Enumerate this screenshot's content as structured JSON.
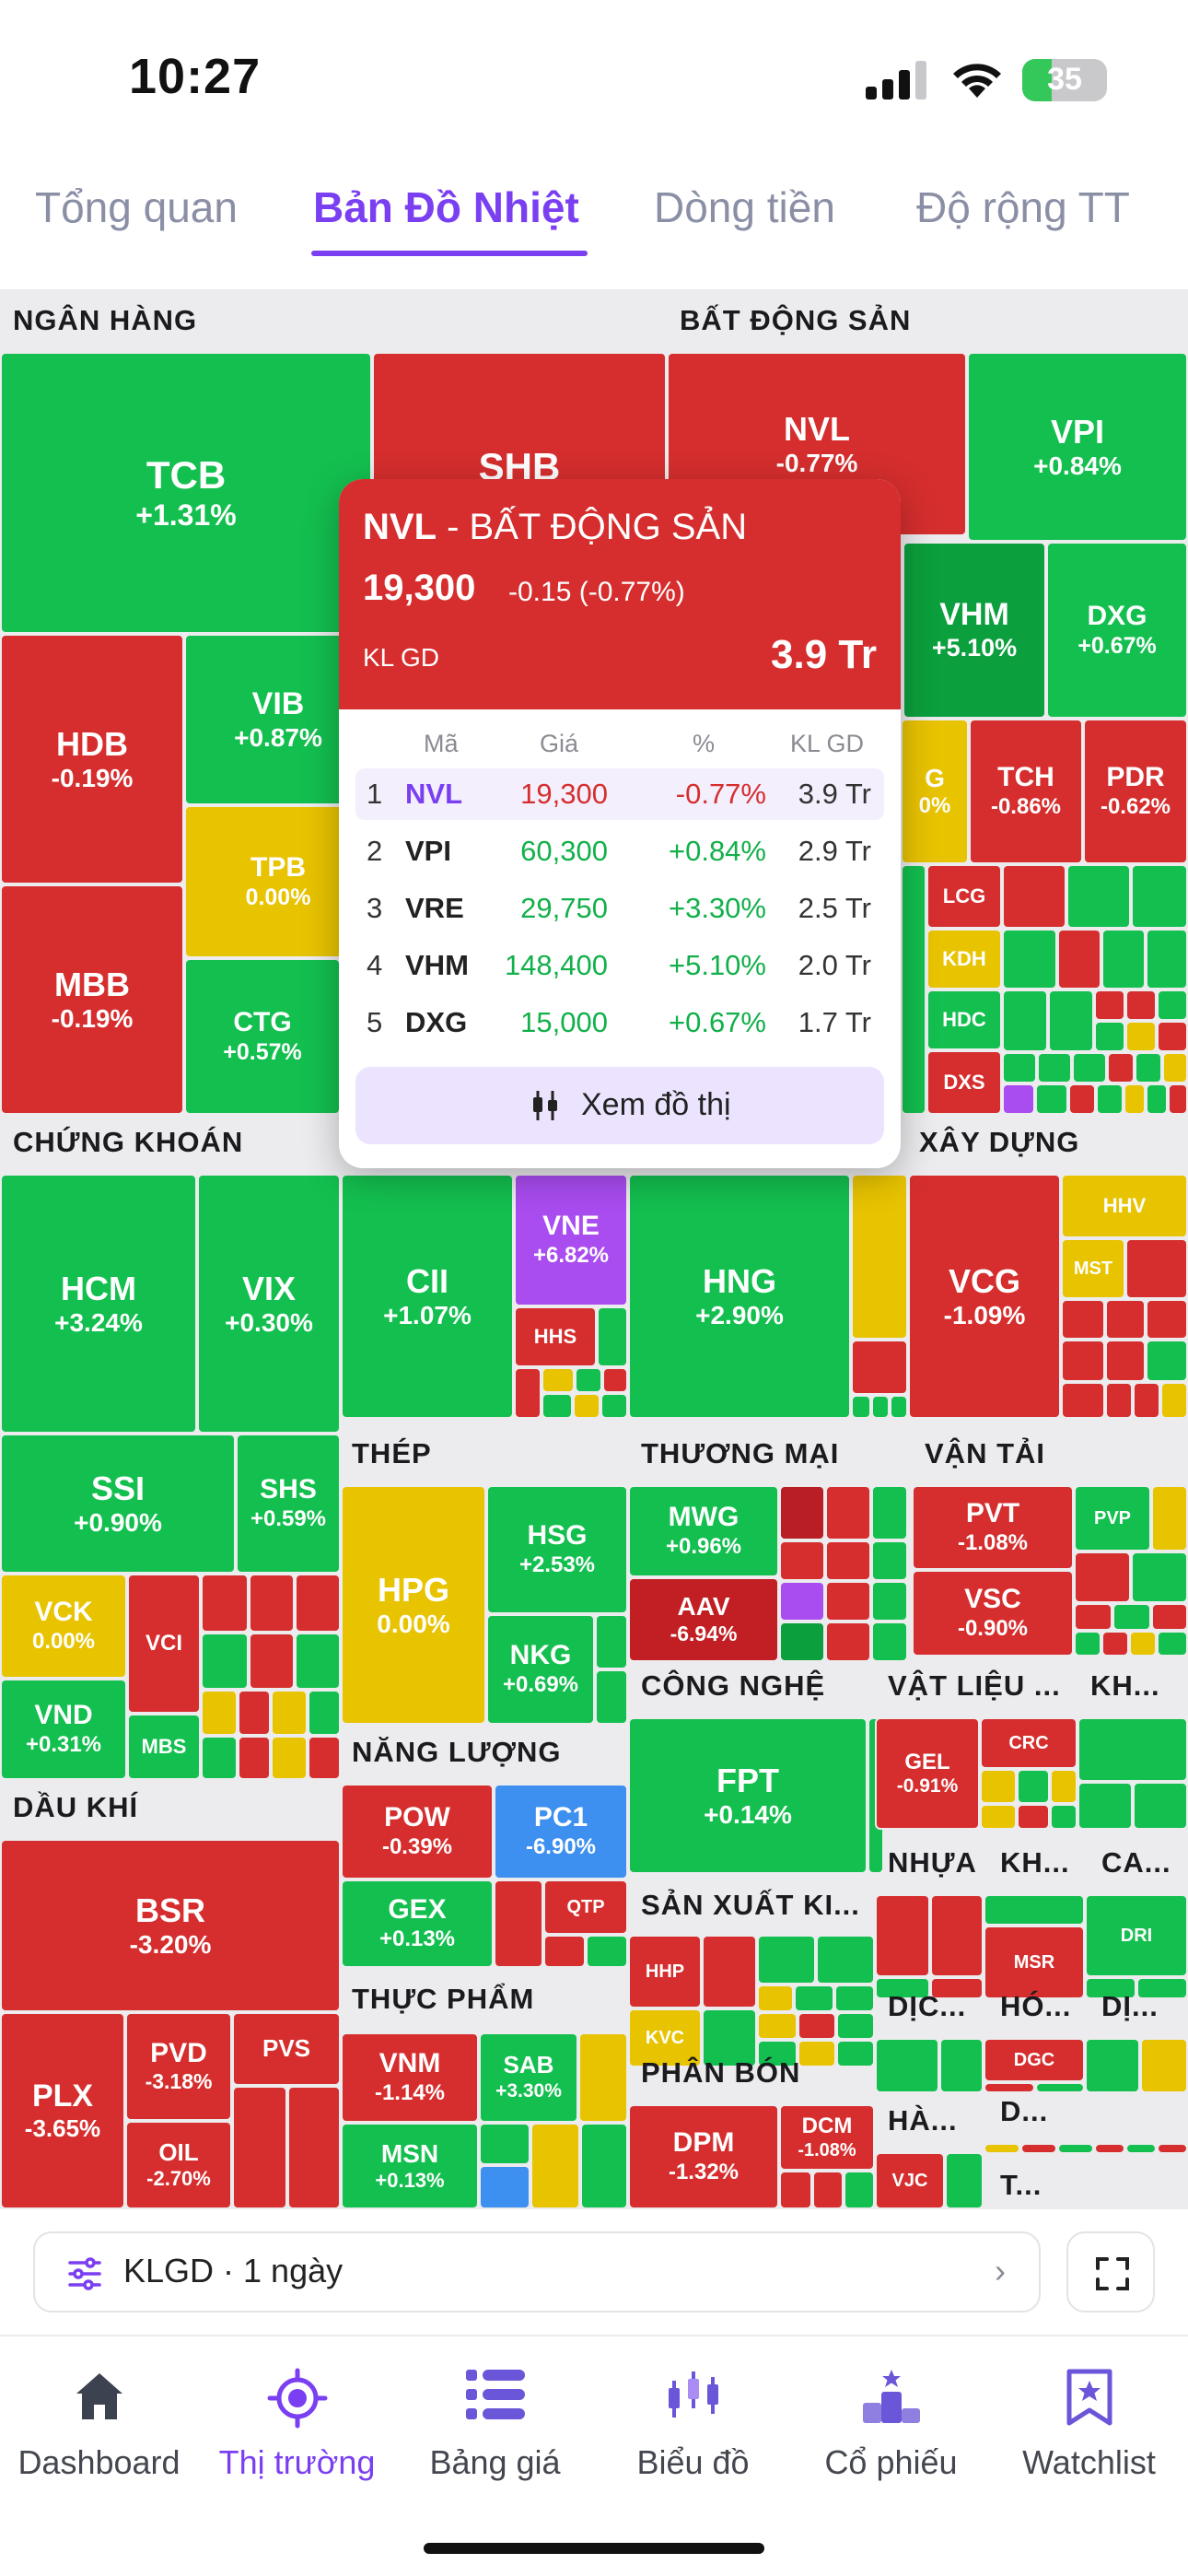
{
  "status_bar": {
    "time": "10:27",
    "battery": "35"
  },
  "tabs": [
    {
      "label": "Tổng quan"
    },
    {
      "label": "Bản Đồ Nhiệt"
    },
    {
      "label": "Dòng tiền"
    },
    {
      "label": "Độ rộng TT"
    }
  ],
  "active_tab": "Bản Đồ Nhiệt",
  "colors": {
    "up": "#13bf4f",
    "strong_up": "#0b9f3d",
    "down": "#d62e2e",
    "flat": "#e8c300",
    "ceiling": "#a94cf0",
    "floor": "#3d8ff0",
    "accent": "#7b3ff2"
  },
  "sectors": {
    "ngan_hang": "NGÂN HÀNG",
    "bat_dong_san": "BẤT ĐỘNG SẢN",
    "chung_khoan": "CHỨNG KHOÁN",
    "xay_dung": "XÂY DỰNG",
    "thep": "THÉP",
    "thuong_mai": "THƯƠNG MẠI",
    "van_tai": "VẬN TẢI",
    "cong_nghe": "CÔNG NGHỆ",
    "vat_lieu": "VẬT LIỆU ...",
    "kh1": "KH...",
    "nang_luong": "NĂNG LƯỢNG",
    "dau_khi": "DẦU KHÍ",
    "nhua": "NHỰA",
    "kh2": "KH...",
    "ca": "CA...",
    "san_xuat": "SẢN XUẤT KI...",
    "thuc_pham": "THỰC PHẨM",
    "dic": "DỊC...",
    "ho": "HÓ...",
    "di": "DỊ...",
    "phan_bon": "PHÂN BÓN",
    "ha": "HÀ...",
    "d": "D...",
    "t": "T..."
  },
  "tiles": {
    "TCB": {
      "symbol": "TCB",
      "change": "+1.31%"
    },
    "SHB": {
      "symbol": "SHB"
    },
    "NVL": {
      "symbol": "NVL",
      "change": "-0.77%"
    },
    "VPI": {
      "symbol": "VPI",
      "change": "+0.84%"
    },
    "HDB": {
      "symbol": "HDB",
      "change": "-0.19%"
    },
    "VIB": {
      "symbol": "VIB",
      "change": "+0.87%"
    },
    "TPB": {
      "symbol": "TPB",
      "change": "0.00%"
    },
    "MBB": {
      "symbol": "MBB",
      "change": "-0.19%"
    },
    "CTG": {
      "symbol": "CTG",
      "change": "+0.57%"
    },
    "VHM": {
      "symbol": "VHM",
      "change": "+5.10%"
    },
    "DXG": {
      "symbol": "DXG",
      "change": "+0.67%"
    },
    "VRE_partial": {
      "symbol": "G",
      "change": "0%"
    },
    "TCH": {
      "symbol": "TCH",
      "change": "-0.86%"
    },
    "PDR": {
      "symbol": "PDR",
      "change": "-0.62%"
    },
    "LCG": {
      "symbol": "LCG"
    },
    "KDH": {
      "symbol": "KDH"
    },
    "HDC": {
      "symbol": "HDC"
    },
    "DXS": {
      "symbol": "DXS"
    },
    "HCM": {
      "symbol": "HCM",
      "change": "+3.24%"
    },
    "VIX": {
      "symbol": "VIX",
      "change": "+0.30%"
    },
    "CII": {
      "symbol": "CII",
      "change": "+1.07%"
    },
    "VNE": {
      "symbol": "VNE",
      "change": "+6.82%"
    },
    "HHS": {
      "symbol": "HHS"
    },
    "HNG": {
      "symbol": "HNG",
      "change": "+2.90%"
    },
    "VCG": {
      "symbol": "VCG",
      "change": "-1.09%"
    },
    "HHV": {
      "symbol": "HHV"
    },
    "MST": {
      "symbol": "MST"
    },
    "SSI": {
      "symbol": "SSI",
      "change": "+0.90%"
    },
    "SHS": {
      "symbol": "SHS",
      "change": "+0.59%"
    },
    "VCK": {
      "symbol": "VCK",
      "change": "0.00%"
    },
    "VCI": {
      "symbol": "VCI"
    },
    "VND": {
      "symbol": "VND",
      "change": "+0.31%"
    },
    "MBS": {
      "symbol": "MBS"
    },
    "HPG": {
      "symbol": "HPG",
      "change": "0.00%"
    },
    "HSG": {
      "symbol": "HSG",
      "change": "+2.53%"
    },
    "NKG": {
      "symbol": "NKG",
      "change": "+0.69%"
    },
    "MWG": {
      "symbol": "MWG",
      "change": "+0.96%"
    },
    "AAV": {
      "symbol": "AAV",
      "change": "-6.94%"
    },
    "PVT": {
      "symbol": "PVT",
      "change": "-1.08%"
    },
    "PVP": {
      "symbol": "PVP"
    },
    "VSC": {
      "symbol": "VSC",
      "change": "-0.90%"
    },
    "FPT": {
      "symbol": "FPT",
      "change": "+0.14%"
    },
    "GEL": {
      "symbol": "GEL",
      "change": "-0.91%"
    },
    "CRC": {
      "symbol": "CRC"
    },
    "POW": {
      "symbol": "POW",
      "change": "-0.39%"
    },
    "PC1": {
      "symbol": "PC1",
      "change": "-6.90%"
    },
    "GEX": {
      "symbol": "GEX",
      "change": "+0.13%"
    },
    "QTP": {
      "symbol": "QTP"
    },
    "BSR": {
      "symbol": "BSR",
      "change": "-3.20%"
    },
    "PLX": {
      "symbol": "PLX",
      "change": "-3.65%"
    },
    "PVD": {
      "symbol": "PVD",
      "change": "-3.18%"
    },
    "PVS": {
      "symbol": "PVS"
    },
    "OIL": {
      "symbol": "OIL",
      "change": "-2.70%"
    },
    "HHP": {
      "symbol": "HHP"
    },
    "KVC": {
      "symbol": "KVC"
    },
    "VNM": {
      "symbol": "VNM",
      "change": "-1.14%"
    },
    "SAB": {
      "symbol": "SAB",
      "change": "+3.30%"
    },
    "MSN": {
      "symbol": "MSN",
      "change": "+0.13%"
    },
    "DPM": {
      "symbol": "DPM",
      "change": "-1.32%"
    },
    "DCM": {
      "symbol": "DCM",
      "change": "-1.08%"
    },
    "MSR": {
      "symbol": "MSR"
    },
    "DRI": {
      "symbol": "DRI"
    },
    "DGC": {
      "symbol": "DGC"
    },
    "VJC": {
      "symbol": "VJC"
    }
  },
  "popup": {
    "symbol": "NVL",
    "separator": " - ",
    "sector": "BẤT ĐỘNG SẢN",
    "price": "19,300",
    "change": "-0.15 (-0.77%)",
    "volume_label": "KL GD",
    "volume": "3.9 Tr",
    "columns": {
      "symbol": "Mã",
      "price": "Giá",
      "percent": "%",
      "volume": "KL GD"
    },
    "rows": [
      {
        "rank": "1",
        "symbol": "NVL",
        "price": "19,300",
        "percent": "-0.77%",
        "volume": "3.9 Tr",
        "dir": "down"
      },
      {
        "rank": "2",
        "symbol": "VPI",
        "price": "60,300",
        "percent": "+0.84%",
        "volume": "2.9 Tr",
        "dir": "up"
      },
      {
        "rank": "3",
        "symbol": "VRE",
        "price": "29,750",
        "percent": "+3.30%",
        "volume": "2.5 Tr",
        "dir": "up"
      },
      {
        "rank": "4",
        "symbol": "VHM",
        "price": "148,400",
        "percent": "+5.10%",
        "volume": "2.0 Tr",
        "dir": "up"
      },
      {
        "rank": "5",
        "symbol": "DXG",
        "price": "15,000",
        "percent": "+0.67%",
        "volume": "1.7 Tr",
        "dir": "up"
      }
    ],
    "chart_button": "Xem đồ thị"
  },
  "filter": {
    "label": "KLGD · 1 ngày"
  },
  "bottom_nav": [
    {
      "label": "Dashboard",
      "icon": "home-icon"
    },
    {
      "label": "Thị trường",
      "icon": "target-icon"
    },
    {
      "label": "Bảng giá",
      "icon": "list-icon"
    },
    {
      "label": "Biểu đồ",
      "icon": "candlestick-icon"
    },
    {
      "label": "Cổ phiếu",
      "icon": "podium-icon"
    },
    {
      "label": "Watchlist",
      "icon": "bookmark-star-icon"
    }
  ],
  "active_nav": "Thị trường"
}
